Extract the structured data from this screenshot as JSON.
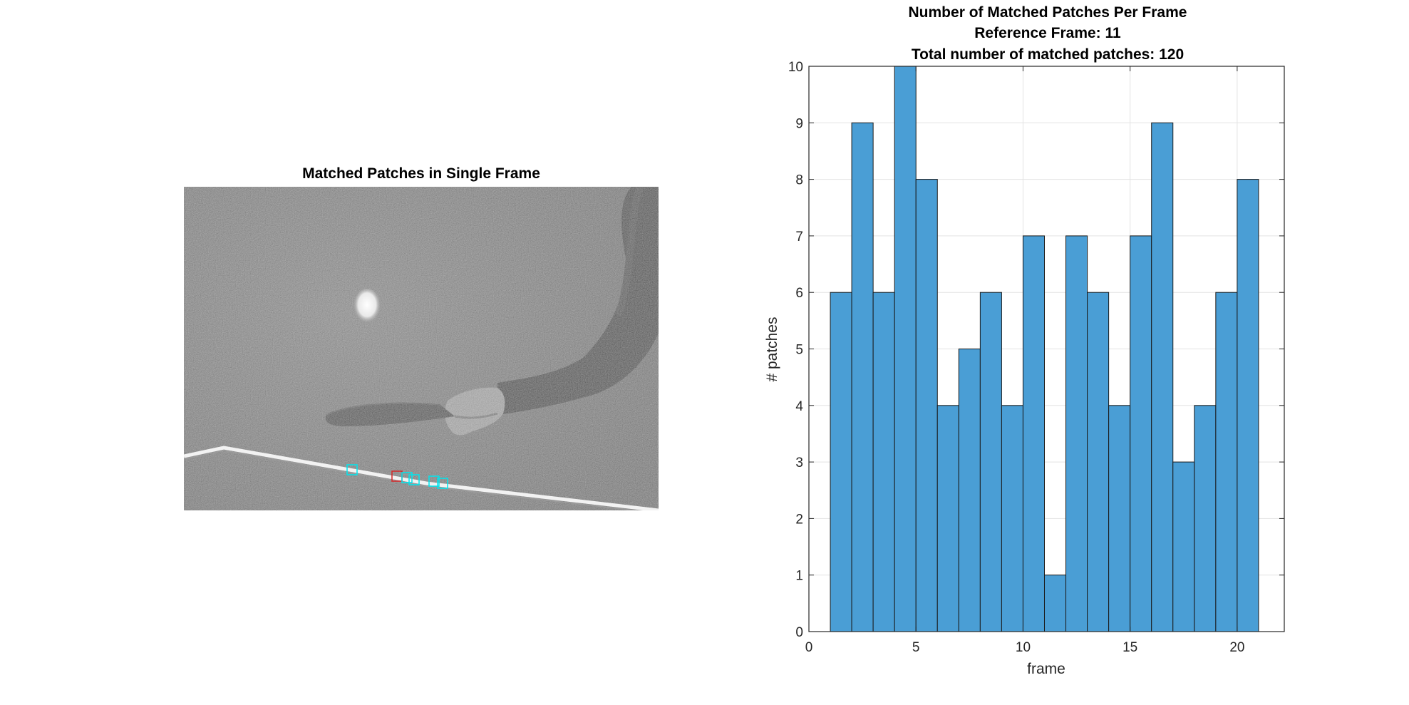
{
  "left_panel": {
    "title": "Matched Patches in Single Frame",
    "patch_colors": {
      "reference": "#d62728",
      "match": "#00e5ee"
    }
  },
  "chart_data": {
    "type": "bar",
    "title": [
      "Number of Matched Patches Per Frame",
      "Reference Frame: 11",
      "Total number of matched patches: 120"
    ],
    "xlabel": "frame",
    "ylabel": "# patches",
    "categories": [
      1,
      2,
      3,
      4,
      5,
      6,
      7,
      8,
      9,
      10,
      11,
      12,
      13,
      14,
      15,
      16,
      17,
      18,
      19,
      20
    ],
    "values": [
      6,
      9,
      6,
      10,
      8,
      4,
      5,
      6,
      4,
      7,
      1,
      7,
      6,
      4,
      7,
      9,
      3,
      4,
      6,
      8
    ],
    "xlim": [
      0,
      22.2
    ],
    "ylim": [
      0,
      10
    ],
    "xticks": [
      0,
      5,
      10,
      15,
      20
    ],
    "yticks": [
      0,
      1,
      2,
      3,
      4,
      5,
      6,
      7,
      8,
      9,
      10
    ],
    "grid": true,
    "bar_color": "#4a9ed5"
  }
}
